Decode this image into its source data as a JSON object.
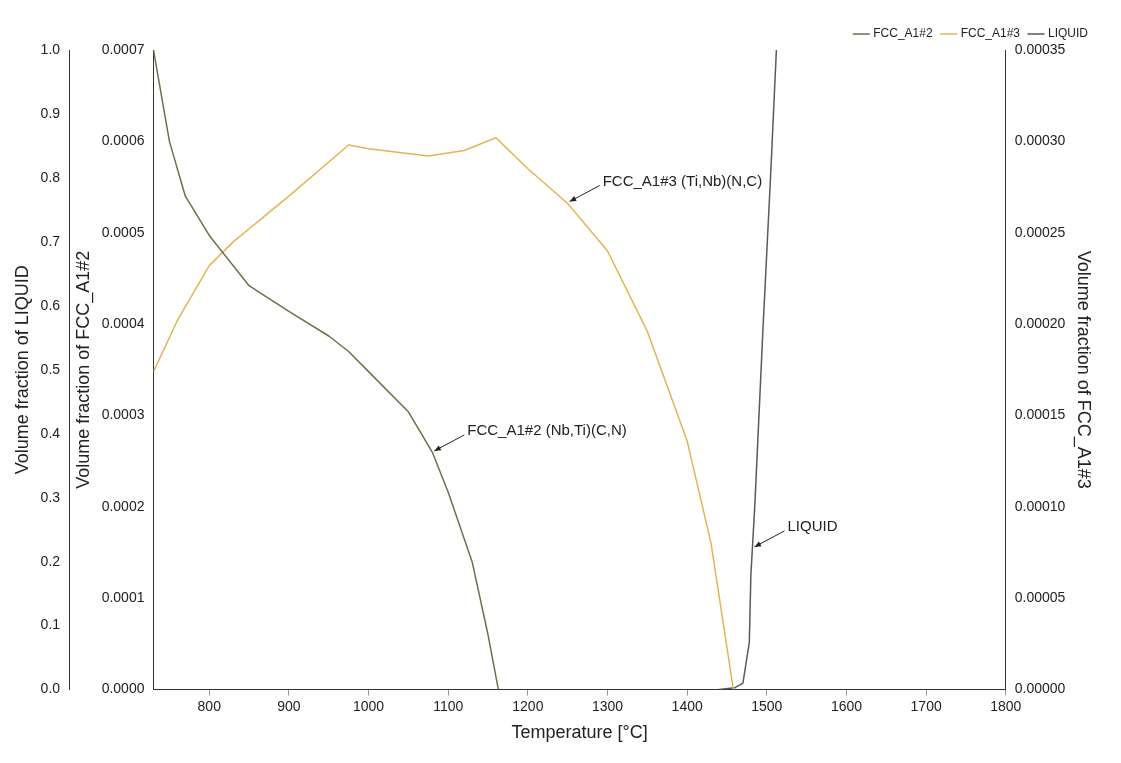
{
  "chart_data": {
    "type": "line",
    "xlabel": "Temperature [°C]",
    "ylabel": "Volume fraction of LIQUID",
    "y2label": "Volume fraction of FCC_A1#3",
    "y3label": "Volume fraction of FCC_A1#2",
    "xlim": [
      730,
      1800
    ],
    "xticks": [
      800,
      900,
      1000,
      1100,
      1200,
      1300,
      1400,
      1500,
      1600,
      1700,
      1800
    ],
    "ylim": [
      0,
      1
    ],
    "yticks": [
      {
        "value": 0,
        "label": "0.0"
      },
      {
        "value": 0.1,
        "label": "0.1"
      },
      {
        "value": 0.2,
        "label": "0.2"
      },
      {
        "value": 0.3,
        "label": "0.3"
      },
      {
        "value": 0.4,
        "label": "0.4"
      },
      {
        "value": 0.5,
        "label": "0.5"
      },
      {
        "value": 0.6,
        "label": "0.6"
      },
      {
        "value": 0.7,
        "label": "0.7"
      },
      {
        "value": 0.8,
        "label": "0.8"
      },
      {
        "value": 0.9,
        "label": "0.9"
      },
      {
        "value": 1,
        "label": "1.0"
      }
    ],
    "y3lim": [
      0,
      0.0007
    ],
    "y3ticks": [
      {
        "value": 0,
        "label": "0.0000"
      },
      {
        "value": 0.0001,
        "label": "0.0001"
      },
      {
        "value": 0.0002,
        "label": "0.0002"
      },
      {
        "value": 0.0003,
        "label": "0.0003"
      },
      {
        "value": 0.0004,
        "label": "0.0004"
      },
      {
        "value": 0.0005,
        "label": "0.0005"
      },
      {
        "value": 0.0006,
        "label": "0.0006"
      },
      {
        "value": 0.0007,
        "label": "0.0007"
      }
    ],
    "y2lim": [
      0,
      0.00035
    ],
    "y2ticks": [
      {
        "value": 0,
        "label": "0.00000"
      },
      {
        "value": 5e-05,
        "label": "0.00005"
      },
      {
        "value": 0.0001,
        "label": "0.00010"
      },
      {
        "value": 0.00015,
        "label": "0.00015"
      },
      {
        "value": 0.0002,
        "label": "0.00020"
      },
      {
        "value": 0.00025,
        "label": "0.00025"
      },
      {
        "value": 0.0003,
        "label": "0.00030"
      },
      {
        "value": 0.00035,
        "label": "0.00035"
      }
    ],
    "series": [
      {
        "name": "FCC_A1#2",
        "color": "#667548",
        "axis": "y3",
        "x": [
          730,
          750,
          770,
          800,
          850,
          900,
          950,
          975,
          1000,
          1050,
          1080,
          1100,
          1130,
          1150,
          1163
        ],
        "values": [
          0.0007,
          0.0006,
          0.00054,
          0.000497,
          0.000442,
          0.000414,
          0.000387,
          0.00037,
          0.000348,
          0.000304,
          0.00026,
          0.000216,
          0.00014,
          6e-05,
          0
        ]
      },
      {
        "name": "FCC_A1#3",
        "color": "#e3b550",
        "axis": "y2",
        "x": [
          730,
          760,
          800,
          830,
          900,
          975,
          1000,
          1075,
          1120,
          1160,
          1200,
          1250,
          1300,
          1350,
          1400,
          1430,
          1458
        ],
        "values": [
          0.000174,
          0.000202,
          0.000232,
          0.000245,
          0.00027,
          0.000298,
          0.000296,
          0.000292,
          0.000295,
          0.000302,
          0.000285,
          0.000266,
          0.00024,
          0.000196,
          0.000136,
          8e-05,
          0
        ]
      },
      {
        "name": "LIQUID",
        "color": "#555a66",
        "axis": "y",
        "x": [
          1440,
          1460,
          1470,
          1478,
          1480,
          1485,
          1495,
          1505,
          1512
        ],
        "values": [
          0,
          0.003,
          0.01,
          0.074,
          0.18,
          0.29,
          0.56,
          0.81,
          1
        ]
      }
    ],
    "annotations": [
      {
        "text": "FCC_A1#2 (Nb,Ti)(C,N)",
        "x": 1080,
        "y": 0.37
      },
      {
        "text": "FCC_A1#3 (Ti,Nb)(N,C)",
        "x": 1250,
        "y": 0.76
      },
      {
        "text": "LIQUID",
        "x": 1482,
        "y": 0.22
      }
    ],
    "legend": "top right",
    "grid": false,
    "marker": "none",
    "line_style": "solid"
  }
}
